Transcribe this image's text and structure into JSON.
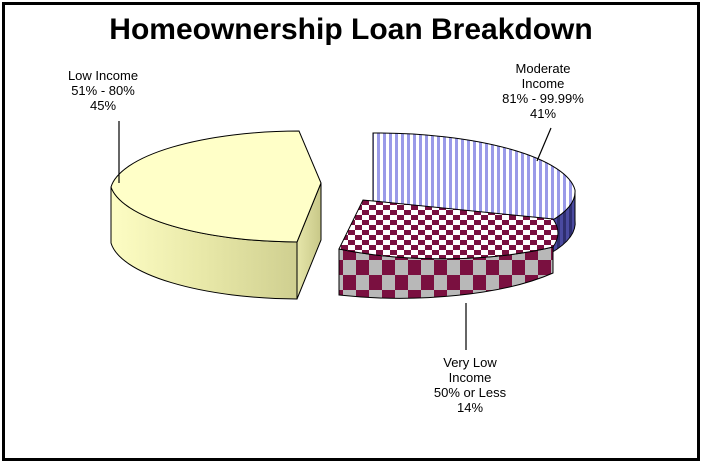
{
  "colors": {
    "low": "#ffffc8",
    "moderate": "#9a9ae8",
    "moderate_side": "#2e2e6e",
    "very_low": "#7a1040",
    "very_low_alt": "#ffffff",
    "outline": "#000000"
  },
  "chart_data": {
    "type": "pie",
    "title": "Homeownership Loan Breakdown",
    "slices": [
      {
        "name": "Low Income",
        "range": "51% - 80%",
        "value": 45,
        "value_label": "45%",
        "pattern": "solid"
      },
      {
        "name": "Moderate Income",
        "range": "81% - 99.99%",
        "value": 41,
        "value_label": "41%",
        "pattern": "vertical-stripes"
      },
      {
        "name": "Very Low Income",
        "range": "50% or  Less",
        "value": 14,
        "value_label": "14%",
        "pattern": "checkerboard"
      }
    ],
    "style": "3d-exploded"
  },
  "labels": {
    "low": [
      "Low Income",
      "51% - 80%",
      "45%"
    ],
    "moderate": [
      "Moderate",
      "Income",
      "81% - 99.99%",
      "41%"
    ],
    "very_low": [
      "Very Low",
      "Income",
      "50% or  Less",
      "14%"
    ]
  }
}
